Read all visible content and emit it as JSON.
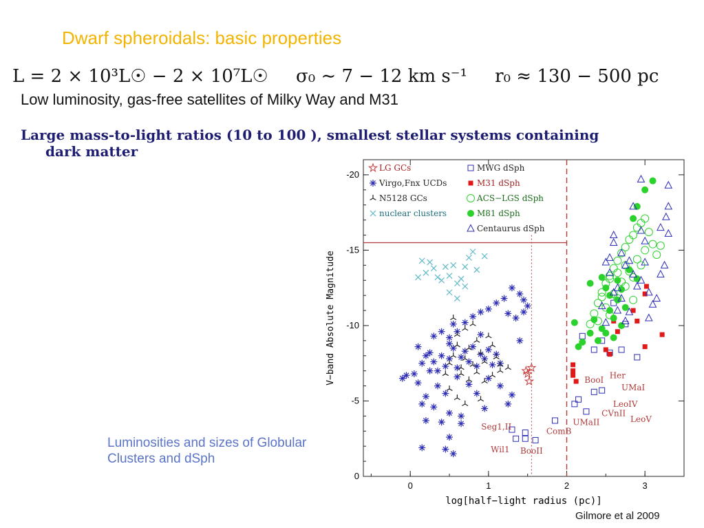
{
  "slide": {
    "title": "Dwarf spheroidals: basic properties",
    "equation": {
      "luminosity": "L = 2 × 10³L☉ − 2 × 10⁷L☉",
      "dispersion": "σ₀ ∼ 7 − 12 km s⁻¹",
      "radius": "r₀ ≈ 130 − 500 pc"
    },
    "bullet1": "Low luminosity, gas-free satellites of Milky Way and M31",
    "bullet2_line1": "Large  mass-to-light ratios (10 to 100 ),  smallest stellar systems containing",
    "bullet2_line2": "dark matter",
    "caption": "Luminosities and sizes of Globular Clusters and dSph",
    "credit": "Gilmore et al 2009"
  },
  "colors": {
    "title": "#f2b400",
    "bullet2": "#1d1d72",
    "caption": "#5b73c8",
    "frame_red": "#b13a3a",
    "blue": "#2b2bb5",
    "cyan": "#5fb8c8",
    "green": "#2cd22c",
    "red": "#e01818",
    "black": "#222222"
  },
  "chart_data": {
    "type": "scatter",
    "xlabel": "log[half−light radius (pc)]",
    "ylabel": "V−band Absolute Magnitude",
    "xlim": [
      -0.6,
      3.5
    ],
    "ylim": [
      0,
      -21
    ],
    "x_ticks": [
      0,
      1,
      2,
      3
    ],
    "y_ticks": [
      0,
      -5,
      -10,
      -15,
      -20
    ],
    "reference_lines": {
      "dashed_vertical_x": 2.0,
      "dotted_vertical_x": 1.55,
      "horizontal_y": -15.5
    },
    "legend": [
      {
        "label": "LG GCs",
        "marker": "star5",
        "color": "#c83a3a"
      },
      {
        "label": "Virgo,Fnx UCDs",
        "marker": "asterisk",
        "color": "#2b2bb5"
      },
      {
        "label": "N5128 GCs",
        "marker": "tri",
        "color": "#222222"
      },
      {
        "label": "nuclear clusters",
        "marker": "x",
        "color": "#5fb8c8"
      },
      {
        "label": "MWG dSph",
        "marker": "square-open",
        "color": "#2b2bb5"
      },
      {
        "label": "M31 dSph",
        "marker": "square-filled",
        "color": "#e01818"
      },
      {
        "label": "ACS−LGS dSph",
        "marker": "circle-open",
        "color": "#2cd22c"
      },
      {
        "label": "M81 dSph",
        "marker": "circle-filled",
        "color": "#2cd22c"
      },
      {
        "label": "Centaurus dSph",
        "marker": "triangle-open",
        "color": "#2b2bb5"
      }
    ],
    "annotations": [
      {
        "text": "Seg1,II",
        "x": 1.1,
        "y": -3.1
      },
      {
        "text": "Wil1",
        "x": 1.15,
        "y": -1.6
      },
      {
        "text": "BooII",
        "x": 1.55,
        "y": -1.5
      },
      {
        "text": "ComB",
        "x": 1.9,
        "y": -2.8
      },
      {
        "text": "UMaII",
        "x": 2.25,
        "y": -3.4
      },
      {
        "text": "BooI",
        "x": 2.35,
        "y": -6.2
      },
      {
        "text": "Her",
        "x": 2.65,
        "y": -6.5
      },
      {
        "text": "UMaI",
        "x": 2.85,
        "y": -5.7
      },
      {
        "text": "LeoIV",
        "x": 2.75,
        "y": -4.6
      },
      {
        "text": "CVnII",
        "x": 2.6,
        "y": -4.0
      },
      {
        "text": "LeoV",
        "x": 2.95,
        "y": -3.6
      }
    ],
    "series": [
      {
        "name": "LG GCs",
        "marker": "star5",
        "color": "#c83a3a",
        "points": [
          [
            1.5,
            -6.8
          ],
          [
            1.55,
            -7.2
          ],
          [
            1.52,
            -6.3
          ],
          [
            1.48,
            -7.0
          ]
        ]
      },
      {
        "name": "Virgo,Fnx UCDs",
        "marker": "asterisk",
        "color": "#2b2bb5",
        "points": [
          [
            -0.05,
            -6.7
          ],
          [
            0.05,
            -6.8
          ],
          [
            0.1,
            -8.6
          ],
          [
            0.15,
            -7.5
          ],
          [
            0.2,
            -8.0
          ],
          [
            0.25,
            -7.0
          ],
          [
            0.3,
            -7.6
          ],
          [
            0.35,
            -7.0
          ],
          [
            0.4,
            -8.0
          ],
          [
            0.45,
            -7.3
          ],
          [
            0.5,
            -7.8
          ],
          [
            0.55,
            -8.5
          ],
          [
            0.6,
            -7.2
          ],
          [
            0.65,
            -7.9
          ],
          [
            0.7,
            -8.3
          ],
          [
            0.75,
            -7.6
          ],
          [
            0.8,
            -8.6
          ],
          [
            0.85,
            -7.3
          ],
          [
            0.9,
            -8.1
          ],
          [
            0.95,
            -7.8
          ],
          [
            1.0,
            -8.4
          ],
          [
            1.05,
            -7.4
          ],
          [
            1.1,
            -8.1
          ],
          [
            1.15,
            -7.5
          ],
          [
            0.3,
            -9.3
          ],
          [
            0.4,
            -9.6
          ],
          [
            0.5,
            -9.2
          ],
          [
            0.55,
            -10.1
          ],
          [
            0.6,
            -9.6
          ],
          [
            0.7,
            -10.2
          ],
          [
            0.8,
            -10.6
          ],
          [
            0.9,
            -10.9
          ],
          [
            1.0,
            -11.1
          ],
          [
            1.1,
            -11.5
          ],
          [
            1.2,
            -11.8
          ],
          [
            1.3,
            -12.5
          ],
          [
            1.4,
            -12.1
          ],
          [
            1.45,
            -11.7
          ],
          [
            1.5,
            -11.3
          ],
          [
            1.45,
            -10.9
          ],
          [
            1.35,
            -10.5
          ],
          [
            1.25,
            -10.8
          ],
          [
            0.35,
            -6.0
          ],
          [
            0.45,
            -5.5
          ],
          [
            0.2,
            -5.3
          ],
          [
            0.15,
            -4.8
          ],
          [
            0.3,
            -4.6
          ],
          [
            0.5,
            -4.2
          ],
          [
            0.65,
            -4.0
          ],
          [
            0.4,
            -3.6
          ],
          [
            0.5,
            -2.6
          ],
          [
            0.65,
            -3.5
          ],
          [
            0.2,
            -3.7
          ],
          [
            0.45,
            -1.8
          ],
          [
            0.55,
            -1.5
          ],
          [
            0.15,
            -1.9
          ],
          [
            1.0,
            -6.5
          ],
          [
            1.15,
            -6.0
          ],
          [
            1.3,
            -5.4
          ],
          [
            1.25,
            -4.8
          ],
          [
            0.95,
            -4.5
          ],
          [
            0.85,
            -5.5
          ],
          [
            0.75,
            -6.1
          ],
          [
            0.6,
            -6.6
          ],
          [
            0.1,
            -6.2
          ],
          [
            -0.1,
            -6.5
          ],
          [
            1.4,
            -9.0
          ],
          [
            0.25,
            -8.2
          ],
          [
            0.5,
            -8.8
          ],
          [
            0.9,
            -9.4
          ]
        ]
      },
      {
        "name": "N5128 GCs",
        "marker": "tri",
        "color": "#222222",
        "points": [
          [
            0.5,
            -7.5
          ],
          [
            0.55,
            -8.0
          ],
          [
            0.6,
            -8.7
          ],
          [
            0.65,
            -7.2
          ],
          [
            0.7,
            -7.8
          ],
          [
            0.75,
            -8.5
          ],
          [
            0.8,
            -7.4
          ],
          [
            0.85,
            -9.0
          ],
          [
            0.9,
            -8.2
          ],
          [
            0.95,
            -7.6
          ],
          [
            1.0,
            -9.3
          ],
          [
            1.05,
            -8.7
          ],
          [
            1.1,
            -7.9
          ],
          [
            1.15,
            -7.4
          ],
          [
            0.6,
            -9.4
          ],
          [
            0.7,
            -9.8
          ],
          [
            0.8,
            -10.1
          ],
          [
            0.55,
            -10.5
          ],
          [
            0.65,
            -6.8
          ],
          [
            0.75,
            -6.4
          ],
          [
            0.85,
            -6.9
          ],
          [
            0.95,
            -6.3
          ],
          [
            1.05,
            -6.7
          ],
          [
            1.15,
            -7.0
          ],
          [
            1.25,
            -7.2
          ],
          [
            0.45,
            -6.8
          ],
          [
            0.5,
            -5.8
          ],
          [
            0.6,
            -5.2
          ],
          [
            0.7,
            -4.8
          ],
          [
            0.9,
            -5.1
          ]
        ]
      },
      {
        "name": "nuclear clusters",
        "marker": "x",
        "color": "#5fb8c8",
        "points": [
          [
            0.15,
            -14.3
          ],
          [
            0.25,
            -14.2
          ],
          [
            0.1,
            -13.2
          ],
          [
            0.2,
            -13.5
          ],
          [
            0.3,
            -13.8
          ],
          [
            0.4,
            -13.0
          ],
          [
            0.5,
            -13.3
          ],
          [
            0.55,
            -14.0
          ],
          [
            0.6,
            -12.8
          ],
          [
            0.65,
            -13.1
          ],
          [
            0.7,
            -12.6
          ],
          [
            0.75,
            -14.5
          ],
          [
            0.8,
            -14.9
          ],
          [
            0.85,
            -13.7
          ],
          [
            0.95,
            -14.6
          ],
          [
            0.45,
            -13.9
          ],
          [
            0.35,
            -13.2
          ],
          [
            0.7,
            -13.9
          ],
          [
            0.5,
            -12.2
          ],
          [
            0.6,
            -11.8
          ]
        ]
      },
      {
        "name": "MWG dSph",
        "marker": "square-open",
        "color": "#2b2bb5",
        "points": [
          [
            1.3,
            -3.1
          ],
          [
            1.35,
            -2.5
          ],
          [
            1.47,
            -2.5
          ],
          [
            1.47,
            -2.9
          ],
          [
            1.6,
            -2.4
          ],
          [
            1.85,
            -3.7
          ],
          [
            2.1,
            -4.8
          ],
          [
            2.15,
            -5.1
          ],
          [
            2.25,
            -4.3
          ],
          [
            2.35,
            -5.6
          ],
          [
            2.45,
            -5.7
          ],
          [
            2.2,
            -9.3
          ],
          [
            2.35,
            -8.4
          ],
          [
            2.55,
            -8.2
          ],
          [
            2.7,
            -8.4
          ],
          [
            2.9,
            -7.9
          ],
          [
            2.45,
            -9.0
          ],
          [
            2.75,
            -10.1
          ],
          [
            2.6,
            -11.5
          ]
        ]
      },
      {
        "name": "M31 dSph",
        "marker": "square-filled",
        "color": "#e01818",
        "points": [
          [
            2.08,
            -7.4
          ],
          [
            2.08,
            -7.0
          ],
          [
            2.12,
            -6.3
          ],
          [
            2.08,
            -6.7
          ],
          [
            2.5,
            -8.4
          ],
          [
            2.55,
            -8.1
          ],
          [
            2.6,
            -10.3
          ],
          [
            2.65,
            -9.6
          ],
          [
            2.85,
            -11.0
          ],
          [
            2.9,
            -10.3
          ],
          [
            3.0,
            -12.1
          ],
          [
            3.02,
            -12.6
          ],
          [
            3.0,
            -8.6
          ],
          [
            3.22,
            -9.4
          ]
        ]
      },
      {
        "name": "ACS−LGS dSph",
        "marker": "circle-open",
        "color": "#2cd22c",
        "points": [
          [
            2.3,
            -10.1
          ],
          [
            2.35,
            -10.8
          ],
          [
            2.4,
            -11.5
          ],
          [
            2.45,
            -12.2
          ],
          [
            2.5,
            -12.8
          ],
          [
            2.55,
            -13.3
          ],
          [
            2.6,
            -13.8
          ],
          [
            2.65,
            -14.3
          ],
          [
            2.7,
            -14.8
          ],
          [
            2.75,
            -15.2
          ],
          [
            2.8,
            -15.7
          ],
          [
            2.85,
            -16.0
          ],
          [
            2.9,
            -16.5
          ],
          [
            2.95,
            -16.8
          ],
          [
            3.0,
            -17.1
          ],
          [
            3.05,
            -16.2
          ],
          [
            3.1,
            -15.4
          ],
          [
            3.15,
            -14.7
          ],
          [
            2.4,
            -10.3
          ],
          [
            2.5,
            -11.2
          ],
          [
            2.6,
            -12.1
          ],
          [
            2.7,
            -12.9
          ],
          [
            2.8,
            -13.6
          ],
          [
            2.9,
            -14.4
          ],
          [
            3.0,
            -15.0
          ],
          [
            2.55,
            -10.7
          ],
          [
            2.65,
            -11.8
          ],
          [
            2.75,
            -12.6
          ],
          [
            2.85,
            -13.2
          ],
          [
            2.95,
            -14.0
          ],
          [
            2.45,
            -11.9
          ],
          [
            2.55,
            -13.1
          ],
          [
            2.65,
            -13.5
          ],
          [
            2.75,
            -14.0
          ],
          [
            2.85,
            -11.7
          ],
          [
            3.2,
            -15.3
          ]
        ]
      },
      {
        "name": "M81 dSph",
        "marker": "circle-filled",
        "color": "#2cd22c",
        "points": [
          [
            2.1,
            -10.2
          ],
          [
            2.15,
            -8.6
          ],
          [
            2.2,
            -8.9
          ],
          [
            2.3,
            -9.5
          ],
          [
            2.35,
            -10.4
          ],
          [
            2.4,
            -9.0
          ],
          [
            2.45,
            -9.8
          ],
          [
            2.5,
            -12.5
          ],
          [
            2.55,
            -11.0
          ],
          [
            2.6,
            -10.5
          ],
          [
            2.65,
            -11.7
          ],
          [
            2.7,
            -12.4
          ],
          [
            2.75,
            -11.2
          ],
          [
            2.8,
            -13.7
          ],
          [
            2.85,
            -17.1
          ],
          [
            2.9,
            -17.9
          ],
          [
            3.0,
            -19.0
          ],
          [
            3.1,
            -19.6
          ],
          [
            2.6,
            -9.2
          ],
          [
            2.7,
            -10.0
          ],
          [
            2.5,
            -9.5
          ],
          [
            2.3,
            -12.8
          ],
          [
            2.55,
            -12.0
          ],
          [
            2.45,
            -13.2
          ],
          [
            2.65,
            -13.0
          ],
          [
            2.9,
            -13.1
          ]
        ]
      },
      {
        "name": "Centaurus dSph",
        "marker": "triangle-open",
        "color": "#2b2bb5",
        "points": [
          [
            2.55,
            -14.5
          ],
          [
            2.6,
            -15.5
          ],
          [
            2.7,
            -14.8
          ],
          [
            2.75,
            -14.0
          ],
          [
            2.8,
            -14.3
          ],
          [
            2.85,
            -13.4
          ],
          [
            2.9,
            -12.6
          ],
          [
            2.95,
            -13.0
          ],
          [
            3.0,
            -14.2
          ],
          [
            3.05,
            -12.2
          ],
          [
            3.1,
            -11.4
          ],
          [
            3.15,
            -11.8
          ],
          [
            3.2,
            -13.4
          ],
          [
            3.25,
            -14.0
          ],
          [
            3.3,
            -17.9
          ],
          [
            3.3,
            -16.1
          ],
          [
            2.6,
            -12.2
          ],
          [
            2.65,
            -11.0
          ],
          [
            2.7,
            -11.8
          ],
          [
            2.75,
            -10.3
          ],
          [
            2.8,
            -10.9
          ],
          [
            2.5,
            -10.2
          ],
          [
            2.45,
            -11.3
          ],
          [
            2.55,
            -13.5
          ],
          [
            2.5,
            -14.2
          ],
          [
            2.65,
            -12.5
          ],
          [
            2.95,
            -19.7
          ],
          [
            3.2,
            -16.5
          ],
          [
            3.27,
            -17.2
          ],
          [
            3.3,
            -19.3
          ],
          [
            2.85,
            -17.9
          ],
          [
            2.95,
            -16.3
          ],
          [
            2.6,
            -16.0
          ],
          [
            3.0,
            -15.6
          ],
          [
            3.05,
            -10.5
          ]
        ]
      }
    ]
  }
}
